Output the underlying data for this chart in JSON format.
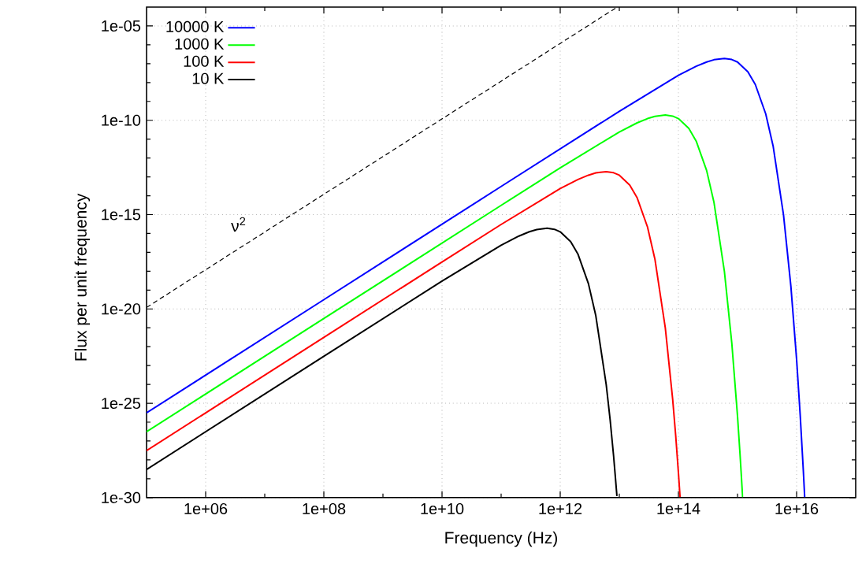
{
  "chart_data": {
    "type": "line",
    "xlabel": "Frequency (Hz)",
    "ylabel": "Flux per unit frequency",
    "log": "xy",
    "grid": true,
    "legend": "top left",
    "xlim": [
      100000.0,
      1e+17
    ],
    "ylim": [
      1e-30,
      0.0001
    ],
    "xticks": [
      {
        "value": 1000000.0,
        "label": "1e+06"
      },
      {
        "value": 10000000.0,
        "label": null
      },
      {
        "value": 100000000.0,
        "label": "1e+08"
      },
      {
        "value": 1000000000.0,
        "label": null
      },
      {
        "value": 10000000000.0,
        "label": "1e+10"
      },
      {
        "value": 100000000000.0,
        "label": null
      },
      {
        "value": 1000000000000.0,
        "label": "1e+12"
      },
      {
        "value": 10000000000000.0,
        "label": null
      },
      {
        "value": 100000000000000.0,
        "label": "1e+14"
      },
      {
        "value": 1000000000000000.0,
        "label": null
      },
      {
        "value": 1e+16,
        "label": "1e+16"
      }
    ],
    "yticks": [
      {
        "value": 1e-30,
        "label": "1e-30"
      },
      {
        "value": 1e-29,
        "label": null
      },
      {
        "value": 1e-28,
        "label": null
      },
      {
        "value": 1e-27,
        "label": null
      },
      {
        "value": 1e-26,
        "label": null
      },
      {
        "value": 1e-25,
        "label": "1e-25"
      },
      {
        "value": 1e-24,
        "label": null
      },
      {
        "value": 1e-23,
        "label": null
      },
      {
        "value": 1e-22,
        "label": null
      },
      {
        "value": 1e-21,
        "label": null
      },
      {
        "value": 1e-20,
        "label": "1e-20"
      },
      {
        "value": 1e-19,
        "label": null
      },
      {
        "value": 1e-18,
        "label": null
      },
      {
        "value": 1e-17,
        "label": null
      },
      {
        "value": 1e-16,
        "label": null
      },
      {
        "value": 1e-15,
        "label": "1e-15"
      },
      {
        "value": 1e-14,
        "label": null
      },
      {
        "value": 1e-13,
        "label": null
      },
      {
        "value": 1e-12,
        "label": null
      },
      {
        "value": 1e-11,
        "label": null
      },
      {
        "value": 1e-10,
        "label": "1e-10"
      },
      {
        "value": 1e-09,
        "label": null
      },
      {
        "value": 1e-08,
        "label": null
      },
      {
        "value": 1e-07,
        "label": null
      },
      {
        "value": 1e-06,
        "label": null
      },
      {
        "value": 1e-05,
        "label": "1e-05"
      }
    ],
    "series": [
      {
        "name": "10000 K",
        "color": "#0000ff",
        "x": [
          100000.0,
          100000000.0,
          100000000000.0,
          10000000000000.0,
          100000000000000.0,
          200000000000000.0,
          300000000000000.0,
          400000000000000.0,
          600000000000000.0,
          800000000000000.0,
          1000000000000000.0,
          1500000000000000.0,
          2000000000000000.0,
          3000000000000000.0,
          4000000000000000.0,
          6000000000000000.0,
          8000000000000000.0,
          1e+16,
          1.15e+16,
          1.3e+16,
          1.37e+16
        ],
        "values": [
          3.1e-26,
          3.1e-20,
          3.1e-14,
          3e-10,
          2.4e-08,
          7.3e-08,
          1.23e-07,
          1.62e-07,
          1.9e-07,
          1.66e-07,
          1.23e-07,
          3.7e-08,
          7.9e-09,
          2.2e-10,
          4.4e-12,
          9.8e-16,
          1.6e-19,
          2.1e-23,
          2.4e-26,
          2.6e-29,
          1.05e-30
        ]
      },
      {
        "name": "1000 K",
        "color": "#00ff00",
        "x": [
          100000.0,
          100000000.0,
          100000000000.0,
          1000000000000.0,
          10000000000000.0,
          20000000000000.0,
          30000000000000.0,
          40000000000000.0,
          60000000000000.0,
          80000000000000.0,
          100000000000000.0,
          150000000000000.0,
          200000000000000.0,
          300000000000000.0,
          400000000000000.0,
          600000000000000.0,
          800000000000000.0,
          1000000000000000.0,
          1100000000000000.0,
          1150000000000000.0,
          1220000000000000.0
        ],
        "values": [
          3.1e-27,
          3.1e-21,
          3.1e-15,
          3e-13,
          2.4e-11,
          7.3e-11,
          1.23e-10,
          1.62e-10,
          1.9e-10,
          1.66e-10,
          1.23e-10,
          3.7e-11,
          7.9e-12,
          2.2e-13,
          4.4e-15,
          9.8e-19,
          1.6e-22,
          2.1e-26,
          2.3e-28,
          2.4e-29,
          1.05e-30
        ]
      },
      {
        "name": "100 K",
        "color": "#ff0000",
        "x": [
          100000.0,
          100000000.0,
          10000000000.0,
          100000000000.0,
          1000000000000.0,
          2000000000000.0,
          3000000000000.0,
          4000000000000.0,
          6000000000000.0,
          8000000000000.0,
          10000000000000.0,
          15000000000000.0,
          20000000000000.0,
          30000000000000.0,
          40000000000000.0,
          60000000000000.0,
          80000000000000.0,
          90000000000000.0,
          100000000000000.0,
          105000000000000.0,
          106600000000000.0
        ],
        "values": [
          3.1e-28,
          3.1e-22,
          3.1e-18,
          3e-16,
          2.4e-14,
          7.3e-14,
          1.23e-13,
          1.62e-13,
          1.9e-13,
          1.66e-13,
          1.23e-13,
          3.7e-14,
          7.9e-15,
          2.2e-16,
          4.4e-18,
          9.8e-22,
          1.6e-25,
          1.9e-27,
          2.1e-29,
          2.2e-30,
          1.07e-30
        ]
      },
      {
        "name": "10 K",
        "color": "#000000",
        "x": [
          100000.0,
          100000000.0,
          10000000000.0,
          100000000000.0,
          200000000000.0,
          300000000000.0,
          400000000000.0,
          600000000000.0,
          800000000000.0,
          1000000000000.0,
          1500000000000.0,
          2000000000000.0,
          3000000000000.0,
          4000000000000.0,
          6000000000000.0,
          7000000000000.0,
          8000000000000.0,
          8500000000000.0,
          9000000000000.0,
          9100000000000.0
        ],
        "values": [
          3.1e-29,
          3.1e-23,
          3e-19,
          2.4e-17,
          7.3e-17,
          1.23e-16,
          1.62e-16,
          1.9e-16,
          1.66e-16,
          1.23e-16,
          3.7e-17,
          7.9e-18,
          2.2e-19,
          4.4e-21,
          9.8e-25,
          1.3e-26,
          1.6e-28,
          1.7e-29,
          1.9e-30,
          1.2e-30
        ]
      },
      {
        "color": "#000000",
        "line_style": "dashed",
        "x": [
          100000.0,
          9200000000000.0
        ],
        "values": [
          1.2e-20,
          0.0001
        ]
      }
    ],
    "annotations": [
      "ν$^{2}$"
    ]
  }
}
